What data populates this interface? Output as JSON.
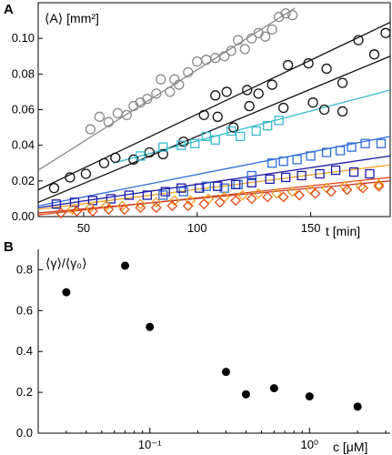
{
  "panel_a": {
    "label": "A",
    "y_label": "⟨A⟩ [mm²]",
    "x_label": "t [min]",
    "chart_data": {
      "type": "scatter",
      "xlim": [
        30,
        185
      ],
      "ylim": [
        0,
        0.12
      ],
      "x_ticks": [
        50,
        100,
        150
      ],
      "y_ticks": [
        0,
        0.02,
        0.04,
        0.06,
        0.08,
        0.1
      ],
      "y_tick_labels": [
        "0.00",
        "0.02",
        "0.04",
        "0.06",
        "0.08",
        "0.10"
      ],
      "x_tick_labels": [
        "50",
        "100",
        "150"
      ],
      "grid": false,
      "series": [
        {
          "marker": "circle",
          "color": "#8a8a8a",
          "points": [
            [
              53,
              0.049
            ],
            [
              57,
              0.056
            ],
            [
              61,
              0.053
            ],
            [
              65,
              0.058
            ],
            [
              69,
              0.057
            ],
            [
              72,
              0.062
            ],
            [
              75,
              0.064
            ],
            [
              78,
              0.066
            ],
            [
              82,
              0.069
            ],
            [
              84,
              0.077
            ],
            [
              88,
              0.07
            ],
            [
              90,
              0.077
            ],
            [
              92,
              0.074
            ],
            [
              96,
              0.081
            ],
            [
              100,
              0.087
            ],
            [
              104,
              0.088
            ],
            [
              108,
              0.089
            ],
            [
              112,
              0.09
            ],
            [
              115,
              0.093
            ],
            [
              118,
              0.099
            ],
            [
              121,
              0.094
            ],
            [
              124,
              0.1
            ],
            [
              127,
              0.103
            ],
            [
              130,
              0.101
            ],
            [
              133,
              0.105
            ],
            [
              136,
              0.112
            ],
            [
              139,
              0.114
            ],
            [
              142,
              0.113
            ]
          ],
          "fit": [
            [
              30,
              0.026
            ],
            [
              143,
              0.117
            ]
          ]
        },
        {
          "marker": "circle",
          "color": "#111111",
          "points": [
            [
              37,
              0.016
            ],
            [
              44,
              0.022
            ],
            [
              51,
              0.024
            ],
            [
              59,
              0.03
            ],
            [
              64,
              0.033
            ],
            [
              72,
              0.032
            ],
            [
              79,
              0.036
            ],
            [
              85,
              0.035
            ],
            [
              94,
              0.042
            ],
            [
              103,
              0.057
            ],
            [
              108,
              0.068
            ],
            [
              113,
              0.07
            ],
            [
              122,
              0.071
            ],
            [
              127,
              0.069
            ],
            [
              133,
              0.074
            ],
            [
              140,
              0.085
            ],
            [
              149,
              0.086
            ],
            [
              157,
              0.083
            ],
            [
              164,
              0.075
            ],
            [
              171,
              0.099
            ],
            [
              178,
              0.091
            ],
            [
              183,
              0.103
            ],
            [
              116,
              0.05
            ],
            [
              138,
              0.061
            ],
            [
              151,
              0.064
            ],
            [
              156,
              0.06
            ],
            [
              164,
              0.059
            ]
          ],
          "fit": [
            [
              30,
              0.015
            ],
            [
              185,
              0.109
            ]
          ]
        },
        {
          "marker": "circle",
          "color": "#111111",
          "points": [
            [
              109,
              0.056
            ],
            [
              123,
              0.062
            ]
          ],
          "fit": [
            [
              30,
              0.008
            ],
            [
              185,
              0.09
            ]
          ]
        },
        {
          "marker": "square",
          "color": "#39b9d0",
          "points": [
            [
              75,
              0.034
            ],
            [
              85,
              0.039
            ],
            [
              93,
              0.04
            ],
            [
              99,
              0.041
            ],
            [
              104,
              0.045
            ],
            [
              108,
              0.043
            ],
            [
              115,
              0.048
            ],
            [
              119,
              0.045
            ],
            [
              126,
              0.048
            ],
            [
              131,
              0.051
            ],
            [
              136,
              0.054
            ]
          ],
          "fit": [
            [
              63,
              0.03
            ],
            [
              185,
              0.071
            ]
          ]
        },
        {
          "marker": "square",
          "color": "#2f6ed8",
          "points": [
            [
              104,
              0.017
            ],
            [
              112,
              0.016
            ],
            [
              118,
              0.018
            ],
            [
              124,
              0.023
            ],
            [
              133,
              0.03
            ],
            [
              138,
              0.031
            ],
            [
              144,
              0.032
            ],
            [
              150,
              0.034
            ],
            [
              157,
              0.036
            ],
            [
              163,
              0.037
            ],
            [
              168,
              0.039
            ],
            [
              174,
              0.041
            ],
            [
              181,
              0.041
            ],
            [
              85,
              0.012
            ],
            [
              94,
              0.014
            ]
          ],
          "fit": [
            [
              30,
              0.006
            ],
            [
              185,
              0.045
            ]
          ]
        },
        {
          "marker": "square",
          "color": "#1d1aa8",
          "points": [
            [
              38,
              0.007
            ],
            [
              46,
              0.008
            ],
            [
              54,
              0.009
            ],
            [
              62,
              0.01
            ],
            [
              70,
              0.012
            ],
            [
              78,
              0.012
            ],
            [
              86,
              0.014
            ],
            [
              93,
              0.016
            ],
            [
              101,
              0.016
            ],
            [
              109,
              0.017
            ],
            [
              117,
              0.018
            ],
            [
              124,
              0.019
            ],
            [
              132,
              0.021
            ],
            [
              139,
              0.022
            ],
            [
              146,
              0.023
            ],
            [
              154,
              0.024
            ],
            [
              161,
              0.026
            ],
            [
              169,
              0.025
            ],
            [
              176,
              0.024
            ]
          ],
          "fit": [
            [
              30,
              0.005
            ],
            [
              185,
              0.034
            ]
          ]
        },
        {
          "marker": "diamond",
          "color": "#f0a020",
          "points": [
            [
              45,
              0.004
            ],
            [
              53,
              0.005
            ],
            [
              60,
              0.006
            ],
            [
              67,
              0.006
            ],
            [
              75,
              0.007
            ],
            [
              82,
              0.008
            ],
            [
              90,
              0.009
            ],
            [
              97,
              0.009
            ],
            [
              105,
              0.01
            ],
            [
              112,
              0.011
            ],
            [
              120,
              0.012
            ],
            [
              127,
              0.013
            ],
            [
              135,
              0.013
            ],
            [
              142,
              0.014
            ],
            [
              150,
              0.015
            ],
            [
              157,
              0.016
            ],
            [
              165,
              0.017
            ],
            [
              172,
              0.017
            ],
            [
              180,
              0.018
            ]
          ],
          "fit": [
            [
              30,
              0.004
            ],
            [
              185,
              0.029
            ]
          ]
        },
        {
          "marker": "diamond",
          "color": "#e04a1a",
          "points": [
            [
              40,
              0.002
            ],
            [
              47,
              0.003
            ],
            [
              54,
              0.003
            ],
            [
              61,
              0.004
            ],
            [
              68,
              0.004
            ],
            [
              75,
              0.005
            ],
            [
              82,
              0.005
            ],
            [
              89,
              0.006
            ],
            [
              96,
              0.006
            ],
            [
              103,
              0.007
            ],
            [
              110,
              0.008
            ],
            [
              117,
              0.009
            ],
            [
              124,
              0.01
            ],
            [
              131,
              0.011
            ],
            [
              138,
              0.011
            ],
            [
              145,
              0.012
            ],
            [
              152,
              0.013
            ],
            [
              159,
              0.014
            ],
            [
              166,
              0.015
            ],
            [
              173,
              0.016
            ],
            [
              180,
              0.017
            ]
          ],
          "fit": [
            [
              30,
              0.001
            ],
            [
              185,
              0.022
            ]
          ]
        },
        {
          "marker": "none",
          "color": "#c0392b",
          "points": [],
          "fit": [
            [
              30,
              0.002
            ],
            [
              185,
              0.02
            ]
          ]
        }
      ]
    }
  },
  "panel_b": {
    "label": "B",
    "y_label": "⟨γ⟩/⟨γ₀⟩",
    "x_label": "c [μM]",
    "chart_data": {
      "type": "scatter",
      "x_scale": "log",
      "xlim": [
        0.02,
        3.2
      ],
      "ylim": [
        0,
        0.9
      ],
      "y_ticks": [
        0,
        0.2,
        0.4,
        0.6,
        0.8
      ],
      "y_tick_labels": [
        "0.0",
        "0.2",
        "0.4",
        "0.6",
        "0.8"
      ],
      "x_ticks": [
        0.1,
        1
      ],
      "x_tick_labels": [
        "10⁻¹",
        "10⁰"
      ],
      "grid": false,
      "x": [
        0.03,
        0.07,
        0.1,
        0.3,
        0.4,
        0.6,
        1.0,
        2.0
      ],
      "y": [
        0.69,
        0.82,
        0.52,
        0.3,
        0.19,
        0.22,
        0.18,
        0.13
      ]
    }
  }
}
